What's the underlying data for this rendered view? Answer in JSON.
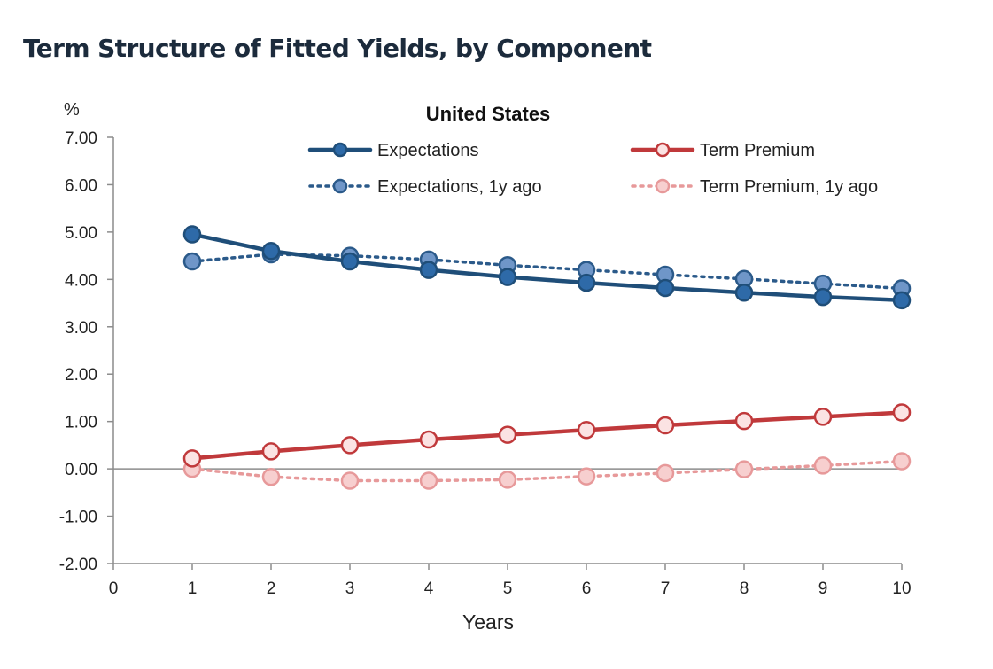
{
  "page": {
    "title": "Term Structure of Fitted Yields, by Component"
  },
  "chart_data": {
    "type": "line",
    "title": "United States",
    "xlabel": "Years",
    "ylabel": "%",
    "xlim": [
      0,
      10
    ],
    "ylim": [
      -2,
      7
    ],
    "x_ticks": [
      "0",
      "1",
      "2",
      "3",
      "4",
      "5",
      "6",
      "7",
      "8",
      "9",
      "10"
    ],
    "y_ticks": [
      "7.00",
      "6.00",
      "5.00",
      "4.00",
      "3.00",
      "2.00",
      "1.00",
      "0.00",
      "-1.00",
      "-2.00"
    ],
    "y_tick_values": [
      7,
      6,
      5,
      4,
      3,
      2,
      1,
      0,
      -1,
      -2
    ],
    "grid": false,
    "legend_position": "top",
    "x": [
      1,
      2,
      3,
      4,
      5,
      6,
      7,
      8,
      9,
      10
    ],
    "series": [
      {
        "name": "Expectations",
        "line": "solid",
        "color": "#1f4e79",
        "marker_fill": "#2e6aa8",
        "values": [
          4.95,
          4.6,
          4.38,
          4.2,
          4.05,
          3.93,
          3.82,
          3.72,
          3.63,
          3.56
        ]
      },
      {
        "name": "Term Premium",
        "line": "solid",
        "color": "#c0393b",
        "marker_fill": "#fbe3e3",
        "values": [
          0.22,
          0.37,
          0.5,
          0.62,
          0.72,
          0.82,
          0.92,
          1.01,
          1.1,
          1.19
        ]
      },
      {
        "name": "Expectations, 1y ago",
        "line": "dotted",
        "color": "#2b5a8a",
        "marker_fill": "#6f96c8",
        "values": [
          4.38,
          4.53,
          4.5,
          4.42,
          4.3,
          4.2,
          4.1,
          4.01,
          3.91,
          3.81
        ]
      },
      {
        "name": "Term Premium, 1y ago",
        "line": "dotted",
        "color": "#e7999a",
        "marker_fill": "#f7cfcf",
        "values": [
          0.0,
          -0.17,
          -0.25,
          -0.25,
          -0.23,
          -0.16,
          -0.09,
          -0.01,
          0.07,
          0.16
        ]
      }
    ]
  }
}
